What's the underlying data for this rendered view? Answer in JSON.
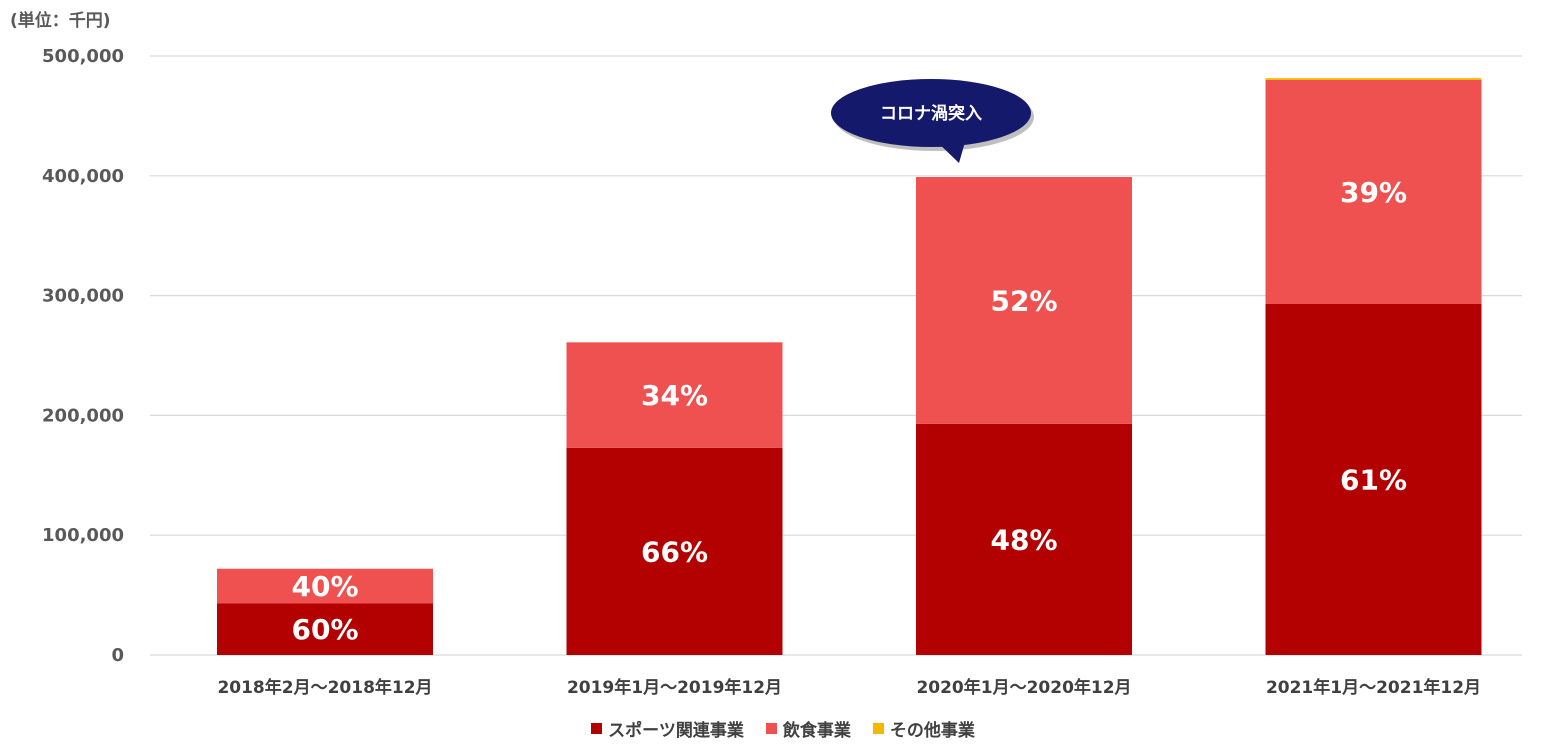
{
  "unit_label": "(単位：千円)",
  "colors": {
    "sports": "#b30000",
    "food": "#ee5150",
    "other": "#f5b800",
    "callout": "#14196b",
    "grid": "#d9d9d9"
  },
  "callout": {
    "text": "コロナ渦突入",
    "category_index": 2
  },
  "chart_data": {
    "type": "bar",
    "stacked": true,
    "categories": [
      "2018年2月～2018年12月",
      "2019年1月～2019年12月",
      "2020年1月～2020年12月",
      "2021年1月～2021年12月"
    ],
    "series": [
      {
        "name": "スポーツ関連事業",
        "values": [
          43000,
          173000,
          193000,
          293000
        ],
        "labels": [
          "60%",
          "66%",
          "48%",
          "61%"
        ]
      },
      {
        "name": "飲食事業",
        "values": [
          29000,
          88000,
          206000,
          187000
        ],
        "labels": [
          "40%",
          "34%",
          "52%",
          "39%"
        ]
      },
      {
        "name": "その他事業",
        "values": [
          0,
          0,
          0,
          1500
        ],
        "labels": [
          "",
          "",
          "",
          ""
        ]
      }
    ],
    "ylim": [
      0,
      500000
    ],
    "yticks": [
      0,
      100000,
      200000,
      300000,
      400000,
      500000
    ],
    "ytick_labels": [
      "0",
      "100,000",
      "200,000",
      "300,000",
      "400,000",
      "500,000"
    ],
    "grid": true,
    "legend_position": "bottom"
  }
}
